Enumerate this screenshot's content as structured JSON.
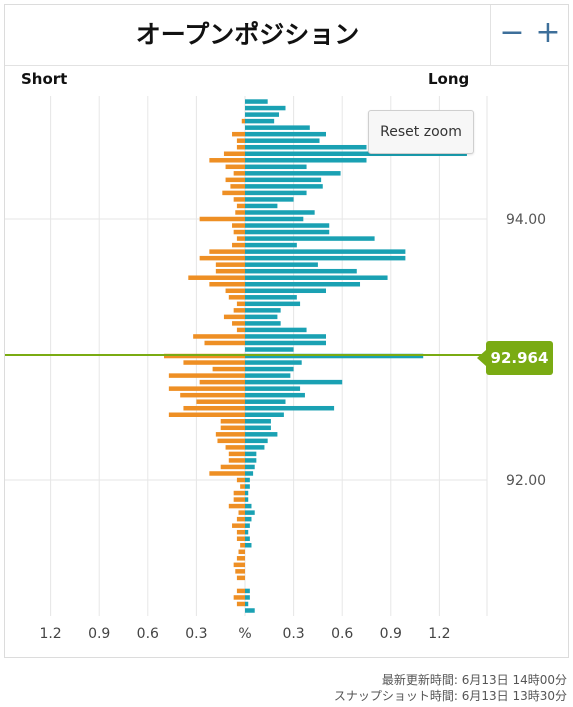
{
  "widget": {
    "title": "オープンポジション",
    "zoom_out_label": "−",
    "zoom_in_label": "+",
    "reset_zoom_label": "Reset zoom"
  },
  "footer": {
    "updated_text": "最新更新時間: 6月13日 14時00分",
    "snapshot_text": "スナップショット時間: 6月13日 13時30分"
  },
  "colors": {
    "short_color": "#ee8f24",
    "long_color": "#1aa1b3",
    "current_price_color": "#7aab13",
    "grid_color": "#e6e6e6"
  },
  "chart_data": {
    "type": "bar",
    "orientation": "horizontal-butterfly",
    "side_labels": {
      "short": "Short",
      "long": "Long"
    },
    "x_unit_label": "%",
    "x_tick_labels": [
      "1.2",
      "0.9",
      "0.6",
      "0.3",
      "%",
      "0.3",
      "0.6",
      "0.9",
      "1.2"
    ],
    "y_tick_labels": [
      "94.00",
      "92.00"
    ],
    "y_ticks": [
      94.0,
      92.0
    ],
    "current_price": 92.964,
    "current_price_label": "92.964",
    "price_step": 0.05,
    "ylim": [
      90.95,
      94.95
    ],
    "xlim": [
      -1.35,
      1.4
    ],
    "series": [
      {
        "name": "Short",
        "prices": [
          94.9,
          94.85,
          94.8,
          94.75,
          94.7,
          94.65,
          94.6,
          94.55,
          94.5,
          94.45,
          94.4,
          94.35,
          94.3,
          94.25,
          94.2,
          94.15,
          94.1,
          94.05,
          94.0,
          93.95,
          93.9,
          93.85,
          93.8,
          93.75,
          93.7,
          93.65,
          93.6,
          93.55,
          93.5,
          93.45,
          93.4,
          93.35,
          93.3,
          93.25,
          93.2,
          93.15,
          93.1,
          93.05,
          93.0,
          92.95,
          92.9,
          92.85,
          92.8,
          92.75,
          92.7,
          92.65,
          92.6,
          92.55,
          92.5,
          92.45,
          92.4,
          92.35,
          92.3,
          92.25,
          92.2,
          92.15,
          92.1,
          92.05,
          92.0,
          91.95,
          91.9,
          91.85,
          91.8,
          91.75,
          91.7,
          91.65,
          91.6,
          91.55,
          91.5,
          91.45,
          91.4,
          91.35,
          91.3,
          91.25,
          91.2,
          91.15,
          91.1,
          91.05,
          91.0
        ],
        "values": [
          0,
          0,
          0,
          0.02,
          0,
          0.08,
          0.05,
          0.05,
          0.13,
          0.22,
          0.12,
          0.07,
          0.12,
          0.09,
          0.14,
          0.07,
          0.05,
          0.06,
          0.28,
          0.08,
          0.07,
          0.05,
          0.08,
          0.22,
          0.28,
          0.18,
          0.18,
          0.35,
          0.22,
          0.12,
          0.1,
          0.05,
          0.07,
          0.13,
          0.08,
          0.05,
          0.32,
          0.25,
          0,
          0,
          0,
          0,
          0,
          0,
          0,
          0,
          0,
          0,
          0,
          0,
          0,
          0,
          0,
          0,
          0,
          0,
          0,
          0,
          0,
          0,
          0,
          0,
          0,
          0,
          0,
          0,
          0,
          0,
          0,
          0,
          0,
          0,
          0,
          0,
          0,
          0,
          0,
          0,
          0
        ]
      },
      {
        "name": "Long",
        "prices": [
          94.9,
          94.85,
          94.8,
          94.75,
          94.7,
          94.65,
          94.6,
          94.55,
          94.5,
          94.45,
          94.4,
          94.35,
          94.3,
          94.25,
          94.2,
          94.15,
          94.1,
          94.05,
          94.0,
          93.95,
          93.9,
          93.85,
          93.8,
          93.75,
          93.7,
          93.65,
          93.6,
          93.55,
          93.5,
          93.45,
          93.4,
          93.35,
          93.3,
          93.25,
          93.2,
          93.15,
          93.1,
          93.05,
          93.0,
          92.95,
          92.9,
          92.85,
          92.8,
          92.75,
          92.7,
          92.65,
          92.6,
          92.55,
          92.5,
          92.45,
          92.4,
          92.35,
          92.3,
          92.25,
          92.2,
          92.15,
          92.1,
          92.05,
          92.0,
          91.95,
          91.9,
          91.85,
          91.8,
          91.75,
          91.7,
          91.65,
          91.6,
          91.55,
          91.5,
          91.45,
          91.4,
          91.35,
          91.3,
          91.25,
          91.2,
          91.15,
          91.1,
          91.05,
          91.0
        ],
        "values": [
          0.14,
          0.25,
          0.21,
          0.18,
          0.4,
          0.5,
          0.46,
          0.75,
          1.37,
          0.75,
          0.38,
          0.59,
          0.47,
          0.48,
          0.38,
          0.3,
          0.2,
          0.43,
          0.36,
          0.52,
          0.52,
          0.8,
          0.32,
          0.99,
          0.99,
          0.45,
          0.69,
          0.88,
          0.71,
          0.5,
          0.32,
          0.34,
          0.22,
          0.2,
          0.22,
          0.38,
          0.5,
          0.5,
          0.3,
          0,
          0,
          0,
          0,
          0,
          0,
          0,
          0,
          0,
          0,
          0,
          0,
          0,
          0,
          0,
          0,
          0,
          0,
          0,
          0,
          0,
          0,
          0,
          0,
          0,
          0,
          0,
          0,
          0,
          0,
          0,
          0,
          0,
          0,
          0,
          0,
          0,
          0,
          0,
          0
        ]
      },
      {
        "name": "Short",
        "prices": [
          92.95,
          92.9,
          92.85,
          92.8,
          92.75,
          92.7,
          92.65,
          92.6,
          92.55,
          92.5,
          92.45,
          92.4,
          92.35,
          92.3,
          92.25,
          92.2,
          92.15,
          92.1,
          92.05,
          92.0,
          91.95,
          91.9,
          91.85,
          91.8,
          91.75,
          91.7,
          91.65,
          91.6,
          91.55,
          91.5,
          91.45,
          91.4,
          91.35,
          91.3,
          91.25,
          91.2,
          91.15,
          91.1,
          91.05,
          91.0
        ],
        "values": [
          0.5,
          0.38,
          0.2,
          0.47,
          0.28,
          0.47,
          0.4,
          0.3,
          0.38,
          0.47,
          0.15,
          0.15,
          0.18,
          0.17,
          0.12,
          0.1,
          0.1,
          0.15,
          0.22,
          0.05,
          0.03,
          0.07,
          0.07,
          0.1,
          0.04,
          0.05,
          0.08,
          0.05,
          0.05,
          0.03,
          0.04,
          0.05,
          0.07,
          0.06,
          0.05,
          0,
          0.05,
          0.07,
          0.05,
          0
        ]
      },
      {
        "name": "Long",
        "prices": [
          92.95,
          92.9,
          92.85,
          92.8,
          92.75,
          92.7,
          92.65,
          92.6,
          92.55,
          92.5,
          92.45,
          92.4,
          92.35,
          92.3,
          92.25,
          92.2,
          92.15,
          92.1,
          92.05,
          92.0,
          91.95,
          91.9,
          91.85,
          91.8,
          91.75,
          91.7,
          91.65,
          91.6,
          91.55,
          91.5,
          91.45,
          91.4,
          91.35,
          91.3,
          91.25,
          91.2,
          91.15,
          91.1,
          91.05,
          91.0
        ],
        "values": [
          1.1,
          0.35,
          0.3,
          0.28,
          0.6,
          0.34,
          0.37,
          0.25,
          0.55,
          0.24,
          0.16,
          0.16,
          0.2,
          0.14,
          0.12,
          0.07,
          0.07,
          0.06,
          0.05,
          0.03,
          0.03,
          0.02,
          0.02,
          0.04,
          0.06,
          0.04,
          0.03,
          0.02,
          0.03,
          0.04,
          0,
          0,
          0,
          0,
          0,
          0,
          0.03,
          0.03,
          0.02,
          0.06
        ]
      }
    ]
  }
}
